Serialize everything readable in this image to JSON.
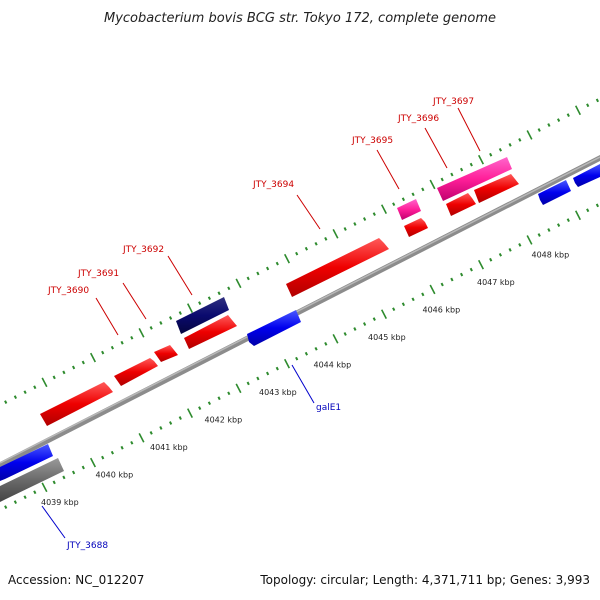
{
  "title": "Mycobacterium bovis BCG str. Tokyo 172, complete genome",
  "footer": {
    "accession": "Accession: NC_012207",
    "summary": "Topology: circular; Length: 4,371,711 bp; Genes: 3,993"
  },
  "colors": {
    "forward_gene": "#ff0000",
    "forward_gene_alt": "#ff2299",
    "forward_gene_dark": "#0a0a6e",
    "reverse_gene": "#0000ff",
    "reverse_gene_gray": "#666666",
    "backbone": "#8c8c8c",
    "tick": "#2e8b2e",
    "label_forward": "#cc0000",
    "label_reverse": "#0000bb"
  },
  "position_ticks": [
    {
      "kbp": 4039,
      "label": "4039 kbp"
    },
    {
      "kbp": 4040,
      "label": "4040 kbp"
    },
    {
      "kbp": 4041,
      "label": "4041 kbp"
    },
    {
      "kbp": 4042,
      "label": "4042 kbp"
    },
    {
      "kbp": 4043,
      "label": "4043 kbp"
    },
    {
      "kbp": 4044,
      "label": "4044 kbp"
    },
    {
      "kbp": 4045,
      "label": "4045 kbp"
    },
    {
      "kbp": 4046,
      "label": "4046 kbp"
    },
    {
      "kbp": 4047,
      "label": "4047 kbp"
    },
    {
      "kbp": 4048,
      "label": "4048 kbp"
    }
  ],
  "genes": [
    {
      "id": "gene-jty-3688",
      "strand": "reverse",
      "color": "reverse_gene",
      "label": "JTY_3688"
    },
    {
      "id": "gene-jty-3690",
      "strand": "forward",
      "color": "forward_gene",
      "label": "JTY_3690"
    },
    {
      "id": "gene-jty-3691",
      "strand": "forward",
      "color": "forward_gene",
      "label": "JTY_3691"
    },
    {
      "id": "gene-jty-3692",
      "strand": "forward",
      "color": "forward_gene_dark",
      "label": "JTY_3692"
    },
    {
      "id": "gene-jty-3694",
      "strand": "forward",
      "color": "forward_gene",
      "label": "JTY_3694"
    },
    {
      "id": "gene-galE1",
      "strand": "reverse",
      "color": "reverse_gene",
      "label": "galE1"
    },
    {
      "id": "gene-jty-3695",
      "strand": "forward",
      "color": "forward_gene_alt",
      "label": "JTY_3695"
    },
    {
      "id": "gene-jty-3696",
      "strand": "forward",
      "color": "forward_gene",
      "label": "JTY_3696"
    },
    {
      "id": "gene-jty-3697",
      "strand": "forward",
      "color": "forward_gene_alt",
      "label": "JTY_3697"
    }
  ]
}
